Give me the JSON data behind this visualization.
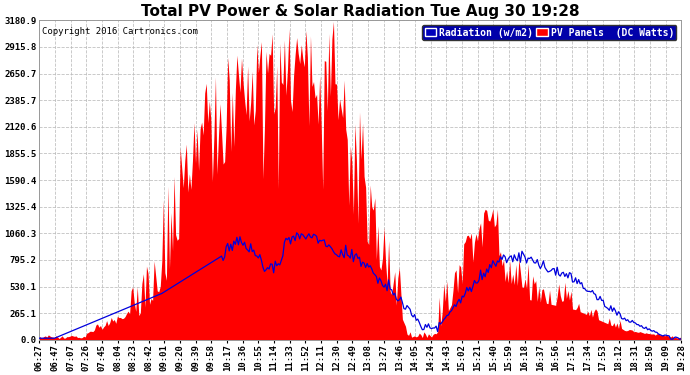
{
  "title": "Total PV Power & Solar Radiation Tue Aug 30 19:28",
  "copyright": "Copyright 2016 Cartronics.com",
  "background_color": "#ffffff",
  "plot_bg_color": "#ffffff",
  "yticks": [
    0.0,
    265.1,
    530.1,
    795.2,
    1060.3,
    1325.4,
    1590.4,
    1855.5,
    2120.6,
    2385.7,
    2650.7,
    2915.8,
    3180.9
  ],
  "ymax": 3180.9,
  "legend_labels": [
    "Radiation (w/m2)",
    "PV Panels  (DC Watts)"
  ],
  "grid_color": "#bbbbbb",
  "pv_color": "#ff0000",
  "rad_color": "#0000dd",
  "xtick_labels": [
    "06:27",
    "06:47",
    "07:07",
    "07:26",
    "07:45",
    "08:04",
    "08:23",
    "08:42",
    "09:01",
    "09:20",
    "09:39",
    "09:58",
    "10:17",
    "10:36",
    "10:55",
    "11:14",
    "11:33",
    "11:52",
    "12:11",
    "12:30",
    "12:49",
    "13:08",
    "13:27",
    "13:46",
    "14:05",
    "14:24",
    "14:43",
    "15:02",
    "15:21",
    "15:40",
    "15:59",
    "16:18",
    "16:37",
    "16:56",
    "17:15",
    "17:34",
    "17:53",
    "18:12",
    "18:31",
    "18:50",
    "19:09",
    "19:28"
  ],
  "title_fontsize": 11,
  "tick_fontsize": 6.5,
  "legend_bg": "#0000aa",
  "legend_fontsize": 7
}
